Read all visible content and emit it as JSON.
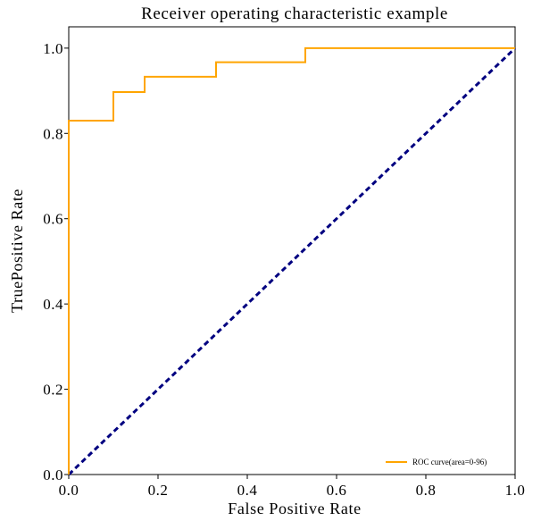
{
  "chart_data": {
    "type": "line",
    "title": "Receiver operating characteristic example",
    "xlabel": "False Positive Rate",
    "ylabel": "TruePositive Rate",
    "xlim": [
      0.0,
      1.0
    ],
    "ylim": [
      0.0,
      1.05
    ],
    "xticks": [
      "0.0",
      "0.2",
      "0.4",
      "0.6",
      "0.8",
      "1.0"
    ],
    "yticks": [
      "0.0",
      "0.2",
      "0.4",
      "0.6",
      "0.8",
      "1.0"
    ],
    "grid": false,
    "legend_position": "lower-right",
    "series": [
      {
        "name": "ROC curve(area=0-96)",
        "color": "#ffa500",
        "style": "solid",
        "x": [
          0.0,
          0.0,
          0.1,
          0.1,
          0.17,
          0.17,
          0.33,
          0.33,
          0.53,
          0.53,
          1.0
        ],
        "y": [
          0.0,
          0.83,
          0.83,
          0.897,
          0.897,
          0.933,
          0.933,
          0.967,
          0.967,
          1.0,
          1.0
        ]
      },
      {
        "color": "#000080",
        "style": "dashed",
        "x": [
          0.0,
          1.0
        ],
        "y": [
          0.0,
          1.0
        ]
      }
    ]
  }
}
